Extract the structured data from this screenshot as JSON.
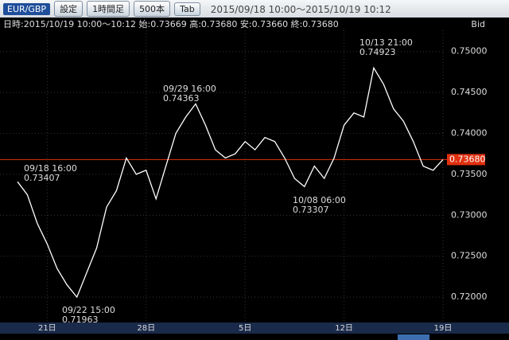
{
  "toolbar": {
    "pair": "EUR/GBP",
    "buttons": [
      "設定",
      "1時間足",
      "500本",
      "Tab"
    ],
    "range": "2015/09/18 10:00～2015/10/19 10:12"
  },
  "chart_data": {
    "type": "line",
    "info": "日時:2015/10/19 10:00～10:12 始:0.73669 高:0.73680 安:0.73660 終:0.73680",
    "price_side": "Bid",
    "categories": [
      null,
      null,
      null,
      "21日",
      null,
      null,
      null,
      null,
      null,
      null,
      null,
      null,
      null,
      "28日",
      null,
      null,
      null,
      null,
      null,
      null,
      null,
      null,
      null,
      "5日",
      null,
      null,
      null,
      null,
      null,
      null,
      null,
      null,
      null,
      "12日",
      null,
      null,
      null,
      null,
      null,
      null,
      null,
      null,
      null,
      "19日"
    ],
    "values": [
      0.7341,
      0.7325,
      0.729,
      0.7265,
      0.7235,
      0.7215,
      0.72,
      0.723,
      0.726,
      0.731,
      0.733,
      0.737,
      0.735,
      0.7355,
      0.732,
      0.736,
      0.74,
      0.742,
      0.7436,
      0.741,
      0.738,
      0.737,
      0.7375,
      0.739,
      0.738,
      0.7395,
      0.739,
      0.737,
      0.7345,
      0.7335,
      0.736,
      0.7345,
      0.737,
      0.741,
      0.7425,
      0.742,
      0.748,
      0.746,
      0.743,
      0.7415,
      0.739,
      0.736,
      0.7355,
      0.7368
    ],
    "color": "#ffffff",
    "ylim": [
      0.7169,
      0.7526
    ],
    "yticks": [
      {
        "value": 0.72,
        "label": "0.72000"
      },
      {
        "value": 0.725,
        "label": "0.72500"
      },
      {
        "value": 0.73,
        "label": "0.73000"
      },
      {
        "value": 0.735,
        "label": "0.73500"
      },
      {
        "value": 0.74,
        "label": "0.74000"
      },
      {
        "value": 0.745,
        "label": "0.74500"
      },
      {
        "value": 0.75,
        "label": "0.75000"
      }
    ],
    "grid": true,
    "hline": {
      "value": 0.7368,
      "label": "0.73680",
      "color": "#e03010"
    },
    "annotations": [
      {
        "label": "09/18 16:00",
        "value": 0.73407
      },
      {
        "label": "09/22 15:00",
        "value": 0.71963
      },
      {
        "label": "09/29 16:00",
        "value": 0.74363
      },
      {
        "label": "10/08 06:00",
        "value": 0.73307
      },
      {
        "label": "10/13 21:00",
        "value": 0.74923
      }
    ]
  }
}
